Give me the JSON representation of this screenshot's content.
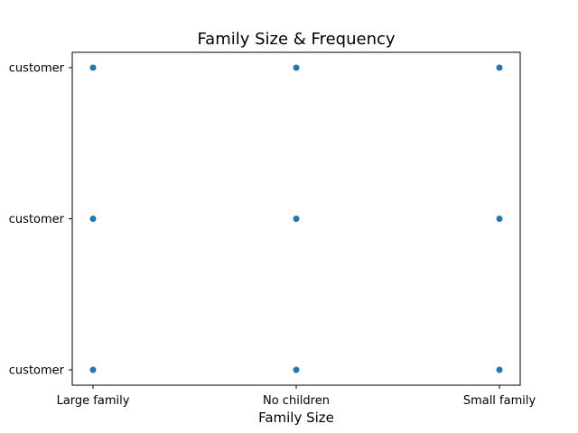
{
  "chart_data": {
    "type": "scatter",
    "title": "Family Size & Frequency",
    "xlabel": "Family Size",
    "ylabel": "",
    "x_categories": [
      "Large family",
      "No children",
      "Small family"
    ],
    "y_categories": [
      "customer",
      "customer",
      "customer"
    ],
    "points": [
      {
        "x": "Large family",
        "y": 0
      },
      {
        "x": "No children",
        "y": 0
      },
      {
        "x": "Small family",
        "y": 0
      },
      {
        "x": "Large family",
        "y": 1
      },
      {
        "x": "No children",
        "y": 1
      },
      {
        "x": "Small family",
        "y": 1
      },
      {
        "x": "Large family",
        "y": 2
      },
      {
        "x": "No children",
        "y": 2
      },
      {
        "x": "Small family",
        "y": 2
      }
    ],
    "marker_color": "#1f77b4",
    "grid": false,
    "legend": "none"
  }
}
